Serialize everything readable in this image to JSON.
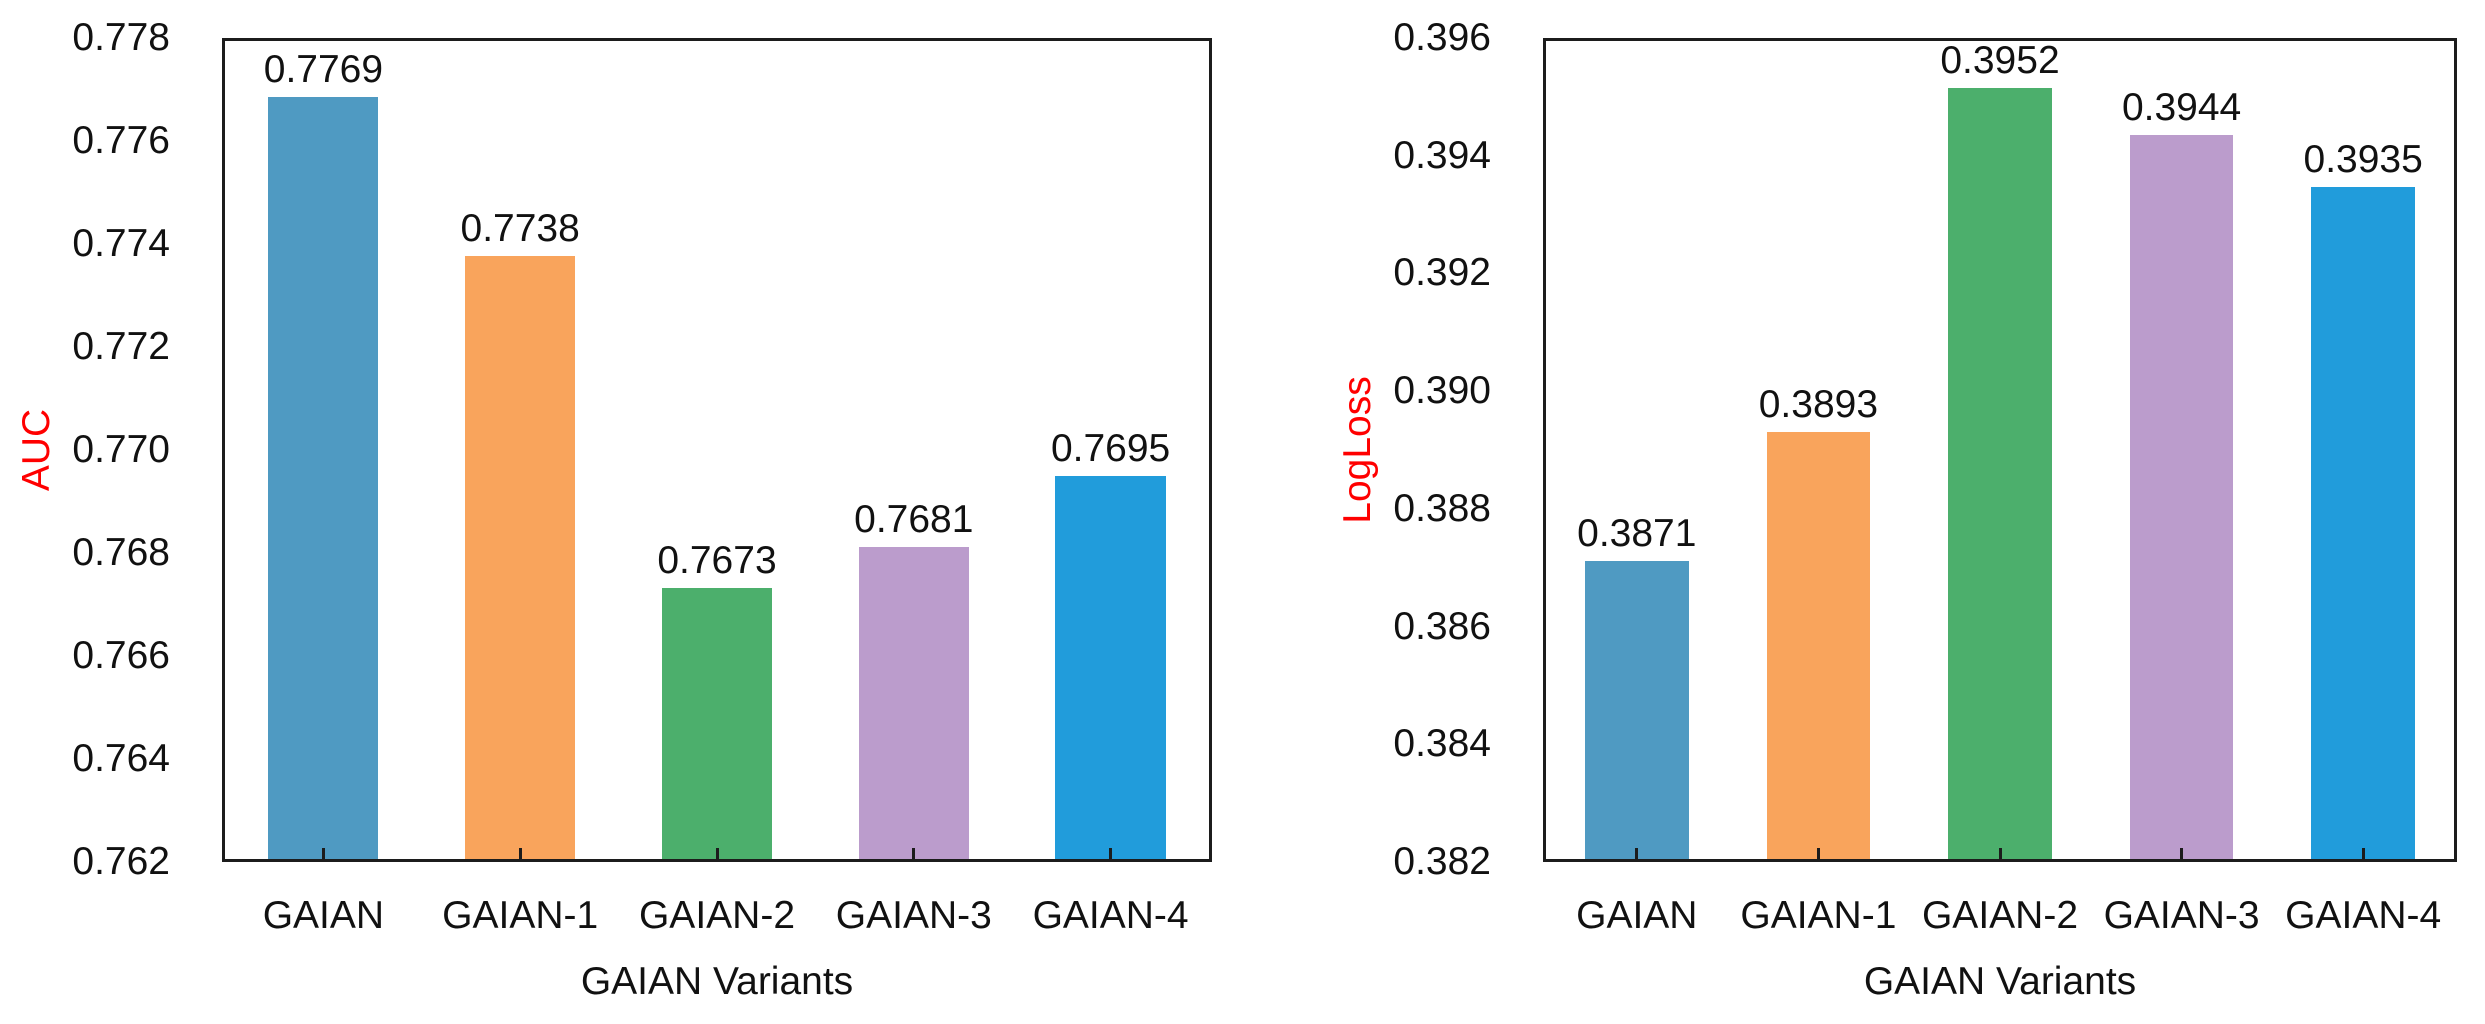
{
  "chart_data": [
    {
      "type": "bar",
      "title": "",
      "categories": [
        "GAIAN",
        "GAIAN-1",
        "GAIAN-2",
        "GAIAN-3",
        "GAIAN-4"
      ],
      "values": [
        0.7769,
        0.7738,
        0.7673,
        0.7681,
        0.7695
      ],
      "data_labels": [
        "0.7769",
        "0.7738",
        "0.7673",
        "0.7681",
        "0.7695"
      ],
      "xlabel": "GAIAN Variants",
      "ylabel": "AUC",
      "ylabel_color": "#ff0000",
      "ylim": [
        0.762,
        0.778
      ],
      "ytick_step": 0.002,
      "ytick_labels": [
        "0.778",
        "0.776",
        "0.774",
        "0.772",
        "0.770",
        "0.768",
        "0.766",
        "0.764",
        "0.762"
      ],
      "bar_colors": [
        "#4f9ac2",
        "#f9a45c",
        "#4caf6c",
        "#bb9ccc",
        "#219cdb"
      ],
      "grid": false,
      "legend": "none"
    },
    {
      "type": "bar",
      "title": "",
      "categories": [
        "GAIAN",
        "GAIAN-1",
        "GAIAN-2",
        "GAIAN-3",
        "GAIAN-4"
      ],
      "values": [
        0.3871,
        0.3893,
        0.3952,
        0.3944,
        0.3935
      ],
      "data_labels": [
        "0.3871",
        "0.3893",
        "0.3952",
        "0.3944",
        "0.3935"
      ],
      "xlabel": "GAIAN Variants",
      "ylabel": "LogLoss",
      "ylabel_color": "#ff0000",
      "ylim": [
        0.382,
        0.396
      ],
      "ytick_step": 0.002,
      "ytick_labels": [
        "0.396",
        "0.394",
        "0.392",
        "0.390",
        "0.388",
        "0.386",
        "0.384",
        "0.382"
      ],
      "bar_colors": [
        "#4f9ac2",
        "#f9a45c",
        "#4caf6c",
        "#bb9ccc",
        "#219cdb"
      ],
      "grid": false,
      "legend": "none"
    }
  ]
}
